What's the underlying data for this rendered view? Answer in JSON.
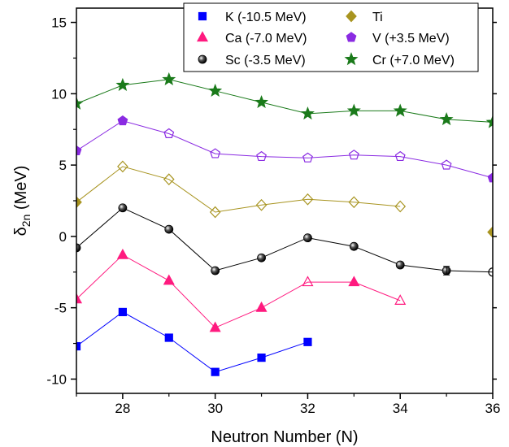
{
  "chart_data": {
    "type": "line",
    "xlabel": "Neutron Number (N)",
    "ylabel_main": "δ",
    "ylabel_sub": "2n",
    "ylabel_unit": " (MeV)",
    "xlim": [
      27,
      36
    ],
    "ylim": [
      -11,
      16
    ],
    "xticks": [
      28,
      30,
      32,
      34,
      36
    ],
    "yticks": [
      -10,
      -5,
      0,
      5,
      10,
      15
    ],
    "grid": false,
    "legend_position": "top-right",
    "series": [
      {
        "name": "K (-10.5 MeV)",
        "color": "#0000ff",
        "marker": "square",
        "x": [
          27,
          28,
          29,
          30,
          31,
          32
        ],
        "y": [
          -7.7,
          -5.3,
          -7.1,
          -9.5,
          -8.5,
          -7.4
        ],
        "hollow": [
          false,
          false,
          false,
          false,
          false,
          false
        ]
      },
      {
        "name": "Ca (-7.0 MeV)",
        "color": "#ff1a7f",
        "marker": "triangle",
        "x": [
          27,
          28,
          29,
          30,
          31,
          32,
          33,
          34
        ],
        "y": [
          -4.4,
          -1.3,
          -3.1,
          -6.4,
          -5.0,
          -3.2,
          -3.2,
          -4.5
        ],
        "hollow": [
          false,
          false,
          false,
          false,
          false,
          true,
          false,
          true
        ]
      },
      {
        "name": "Sc (-3.5 MeV)",
        "color": "#000000",
        "marker": "circle",
        "x": [
          27,
          28,
          29,
          30,
          31,
          32,
          33,
          34,
          35,
          36
        ],
        "y": [
          -0.8,
          2.0,
          0.5,
          -2.4,
          -1.5,
          -0.1,
          -0.7,
          -2.0,
          -2.4,
          -2.5
        ],
        "hollow": [
          false,
          false,
          false,
          false,
          false,
          false,
          false,
          false,
          false,
          true
        ]
      },
      {
        "name": "Ti",
        "color": "#a89420",
        "marker": "diamond",
        "x": [
          27,
          28,
          29,
          30,
          31,
          32,
          33,
          34
        ],
        "y": [
          2.4,
          4.9,
          4.0,
          1.7,
          2.2,
          2.6,
          2.4,
          2.1
        ],
        "hollow": [
          false,
          true,
          true,
          true,
          true,
          true,
          true,
          true
        ],
        "extra_points": [
          {
            "x": 36,
            "y": 0.3,
            "hollow": false
          }
        ]
      },
      {
        "name": "V (+3.5 MeV)",
        "color": "#8a2be2",
        "marker": "pentagon",
        "x": [
          27,
          28,
          29,
          30,
          31,
          32,
          33,
          34,
          35,
          36
        ],
        "y": [
          6.0,
          8.1,
          7.2,
          5.8,
          5.6,
          5.5,
          5.7,
          5.6,
          5.0,
          4.1
        ],
        "hollow": [
          false,
          false,
          true,
          true,
          true,
          true,
          true,
          true,
          true,
          false
        ]
      },
      {
        "name": "Cr (+7.0 MeV)",
        "color": "#1a7a1a",
        "marker": "star",
        "x": [
          27,
          28,
          29,
          30,
          31,
          32,
          33,
          34,
          35,
          36
        ],
        "y": [
          9.3,
          10.6,
          11.0,
          10.2,
          9.4,
          8.6,
          8.8,
          8.8,
          8.2,
          8.0
        ],
        "hollow": [
          false,
          false,
          false,
          false,
          false,
          false,
          false,
          false,
          false,
          false
        ]
      }
    ]
  }
}
